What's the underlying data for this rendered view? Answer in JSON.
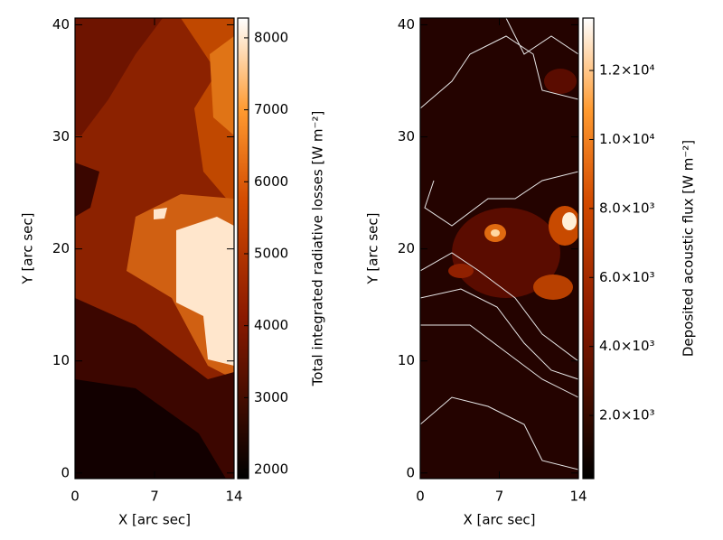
{
  "chart_data": [
    {
      "type": "heatmap",
      "xlabel": "X [arc sec]",
      "ylabel": "Y [arc sec]",
      "xlim": [
        0,
        14
      ],
      "xticks": [
        0,
        7,
        14
      ],
      "ylim": [
        -0.5,
        40.6
      ],
      "yticks": [
        0,
        10,
        20,
        30,
        40
      ],
      "colorbar": {
        "label": "Total integrated radiative losses [W m⁻²]",
        "lim": [
          1875,
          8275
        ],
        "ticks": [
          2000,
          3000,
          4000,
          5000,
          6000,
          7000,
          8000
        ]
      }
    },
    {
      "type": "heatmap",
      "xlabel": "X [arc sec]",
      "ylabel": "Y [arc sec]",
      "xlim": [
        0,
        14
      ],
      "xticks": [
        0,
        7,
        14
      ],
      "ylim": [
        -0.5,
        40.6
      ],
      "yticks": [
        0,
        10,
        20,
        30,
        40
      ],
      "colorbar": {
        "label": "Deposited acoustic flux [W m⁻²]",
        "lim": [
          170,
          13520
        ],
        "ticks": [
          {
            "value": 2000,
            "label": "2.0×10³"
          },
          {
            "value": 4000,
            "label": "4.0×10³"
          },
          {
            "value": 6000,
            "label": "6.0×10³"
          },
          {
            "value": 8000,
            "label": "8.0×10³"
          },
          {
            "value": 10000,
            "label": "1.0×10⁴"
          },
          {
            "value": 12000,
            "label": "1.2×10⁴"
          }
        ]
      }
    }
  ]
}
